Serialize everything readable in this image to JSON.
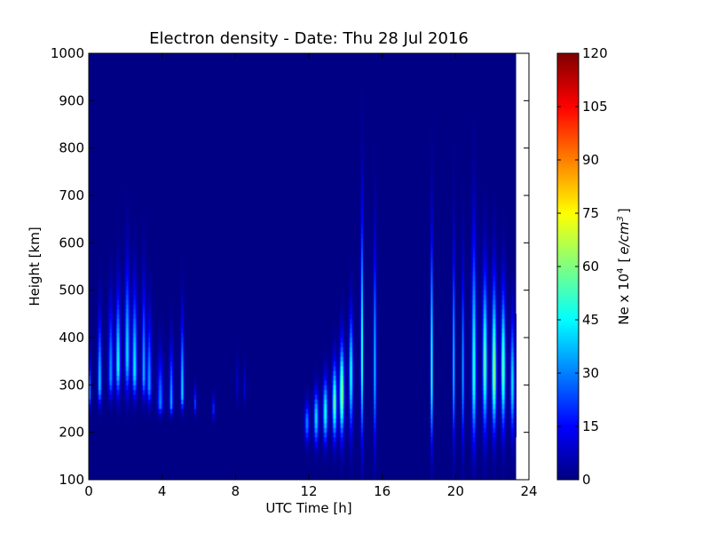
{
  "chart_data": {
    "type": "heatmap",
    "title": "Electron density - Date: Thu 28 Jul 2016",
    "xlabel": "UTC Time [h]",
    "ylabel": "Height [km]",
    "xlim": [
      0,
      24
    ],
    "ylim": [
      100,
      1000
    ],
    "x_ticks": [
      "0",
      "4",
      "8",
      "12",
      "16",
      "20",
      "24"
    ],
    "y_ticks": [
      "100",
      "200",
      "300",
      "400",
      "500",
      "600",
      "700",
      "800",
      "900",
      "1000"
    ],
    "colorbar": {
      "label": "Ne x 10^4  [e/cm^3]",
      "label_main": "Ne x 10",
      "label_exp": "4",
      "label_unit_open": "[",
      "label_unit": "e/cm",
      "label_unit_exp": "3",
      "label_unit_close": "]",
      "range": [
        0,
        120
      ],
      "ticks": [
        "0",
        "15",
        "30",
        "45",
        "60",
        "75",
        "90",
        "105",
        "120"
      ],
      "colormap": "jet"
    },
    "data_extent_hours": [
      0,
      23.3
    ],
    "grid": false,
    "features": [
      {
        "t": 0.05,
        "w": 0.15,
        "peak_km": 280,
        "value": 35,
        "top_km": 420,
        "bottom_km": 240
      },
      {
        "t": 0.6,
        "w": 0.25,
        "peak_km": 300,
        "value": 40,
        "top_km": 560,
        "bottom_km": 240
      },
      {
        "t": 1.2,
        "w": 0.3,
        "peak_km": 320,
        "value": 32,
        "top_km": 600,
        "bottom_km": 250
      },
      {
        "t": 1.6,
        "w": 0.3,
        "peak_km": 340,
        "value": 45,
        "top_km": 620,
        "bottom_km": 250
      },
      {
        "t": 2.1,
        "w": 0.3,
        "peak_km": 360,
        "value": 42,
        "top_km": 700,
        "bottom_km": 250
      },
      {
        "t": 2.5,
        "w": 0.3,
        "peak_km": 330,
        "value": 44,
        "top_km": 640,
        "bottom_km": 250
      },
      {
        "t": 3.0,
        "w": 0.25,
        "peak_km": 320,
        "value": 36,
        "top_km": 660,
        "bottom_km": 250
      },
      {
        "t": 3.3,
        "w": 0.3,
        "peak_km": 300,
        "value": 33,
        "top_km": 560,
        "bottom_km": 240
      },
      {
        "t": 3.9,
        "w": 0.35,
        "peak_km": 260,
        "value": 30,
        "top_km": 450,
        "bottom_km": 230
      },
      {
        "t": 4.5,
        "w": 0.25,
        "peak_km": 260,
        "value": 34,
        "top_km": 480,
        "bottom_km": 230
      },
      {
        "t": 5.1,
        "w": 0.2,
        "peak_km": 280,
        "value": 44,
        "top_km": 560,
        "bottom_km": 235
      },
      {
        "t": 5.8,
        "w": 0.15,
        "peak_km": 260,
        "value": 24,
        "top_km": 330,
        "bottom_km": 240
      },
      {
        "t": 6.8,
        "w": 0.15,
        "peak_km": 250,
        "value": 22,
        "top_km": 300,
        "bottom_km": 230
      },
      {
        "t": 8.1,
        "w": 0.12,
        "peak_km": 300,
        "value": 12,
        "top_km": 400,
        "bottom_km": 250
      },
      {
        "t": 8.5,
        "w": 0.12,
        "peak_km": 290,
        "value": 14,
        "top_km": 380,
        "bottom_km": 250
      },
      {
        "t": 11.9,
        "w": 0.3,
        "peak_km": 220,
        "value": 30,
        "top_km": 300,
        "bottom_km": 160
      },
      {
        "t": 12.4,
        "w": 0.3,
        "peak_km": 230,
        "value": 42,
        "top_km": 340,
        "bottom_km": 150
      },
      {
        "t": 12.9,
        "w": 0.3,
        "peak_km": 240,
        "value": 48,
        "top_km": 380,
        "bottom_km": 150
      },
      {
        "t": 13.4,
        "w": 0.3,
        "peak_km": 260,
        "value": 55,
        "top_km": 420,
        "bottom_km": 150
      },
      {
        "t": 13.8,
        "w": 0.3,
        "peak_km": 280,
        "value": 64,
        "top_km": 480,
        "bottom_km": 150
      },
      {
        "t": 14.3,
        "w": 0.25,
        "peak_km": 320,
        "value": 48,
        "top_km": 560,
        "bottom_km": 150
      },
      {
        "t": 14.9,
        "w": 0.18,
        "peak_km": 350,
        "value": 52,
        "top_km": 900,
        "bottom_km": 110
      },
      {
        "t": 15.6,
        "w": 0.18,
        "peak_km": 330,
        "value": 40,
        "top_km": 800,
        "bottom_km": 110
      },
      {
        "t": 18.7,
        "w": 0.15,
        "peak_km": 320,
        "value": 56,
        "top_km": 840,
        "bottom_km": 110
      },
      {
        "t": 19.9,
        "w": 0.15,
        "peak_km": 330,
        "value": 42,
        "top_km": 800,
        "bottom_km": 110
      },
      {
        "t": 20.4,
        "w": 0.15,
        "peak_km": 320,
        "value": 38,
        "top_km": 720,
        "bottom_km": 110
      },
      {
        "t": 21.0,
        "w": 0.3,
        "peak_km": 320,
        "value": 48,
        "top_km": 840,
        "bottom_km": 110
      },
      {
        "t": 21.6,
        "w": 0.3,
        "peak_km": 340,
        "value": 56,
        "top_km": 700,
        "bottom_km": 140
      },
      {
        "t": 22.1,
        "w": 0.3,
        "peak_km": 320,
        "value": 62,
        "top_km": 680,
        "bottom_km": 150
      },
      {
        "t": 22.6,
        "w": 0.3,
        "peak_km": 330,
        "value": 56,
        "top_km": 640,
        "bottom_km": 150
      },
      {
        "t": 23.1,
        "w": 0.25,
        "peak_km": 300,
        "value": 44,
        "top_km": 560,
        "bottom_km": 150
      }
    ]
  }
}
